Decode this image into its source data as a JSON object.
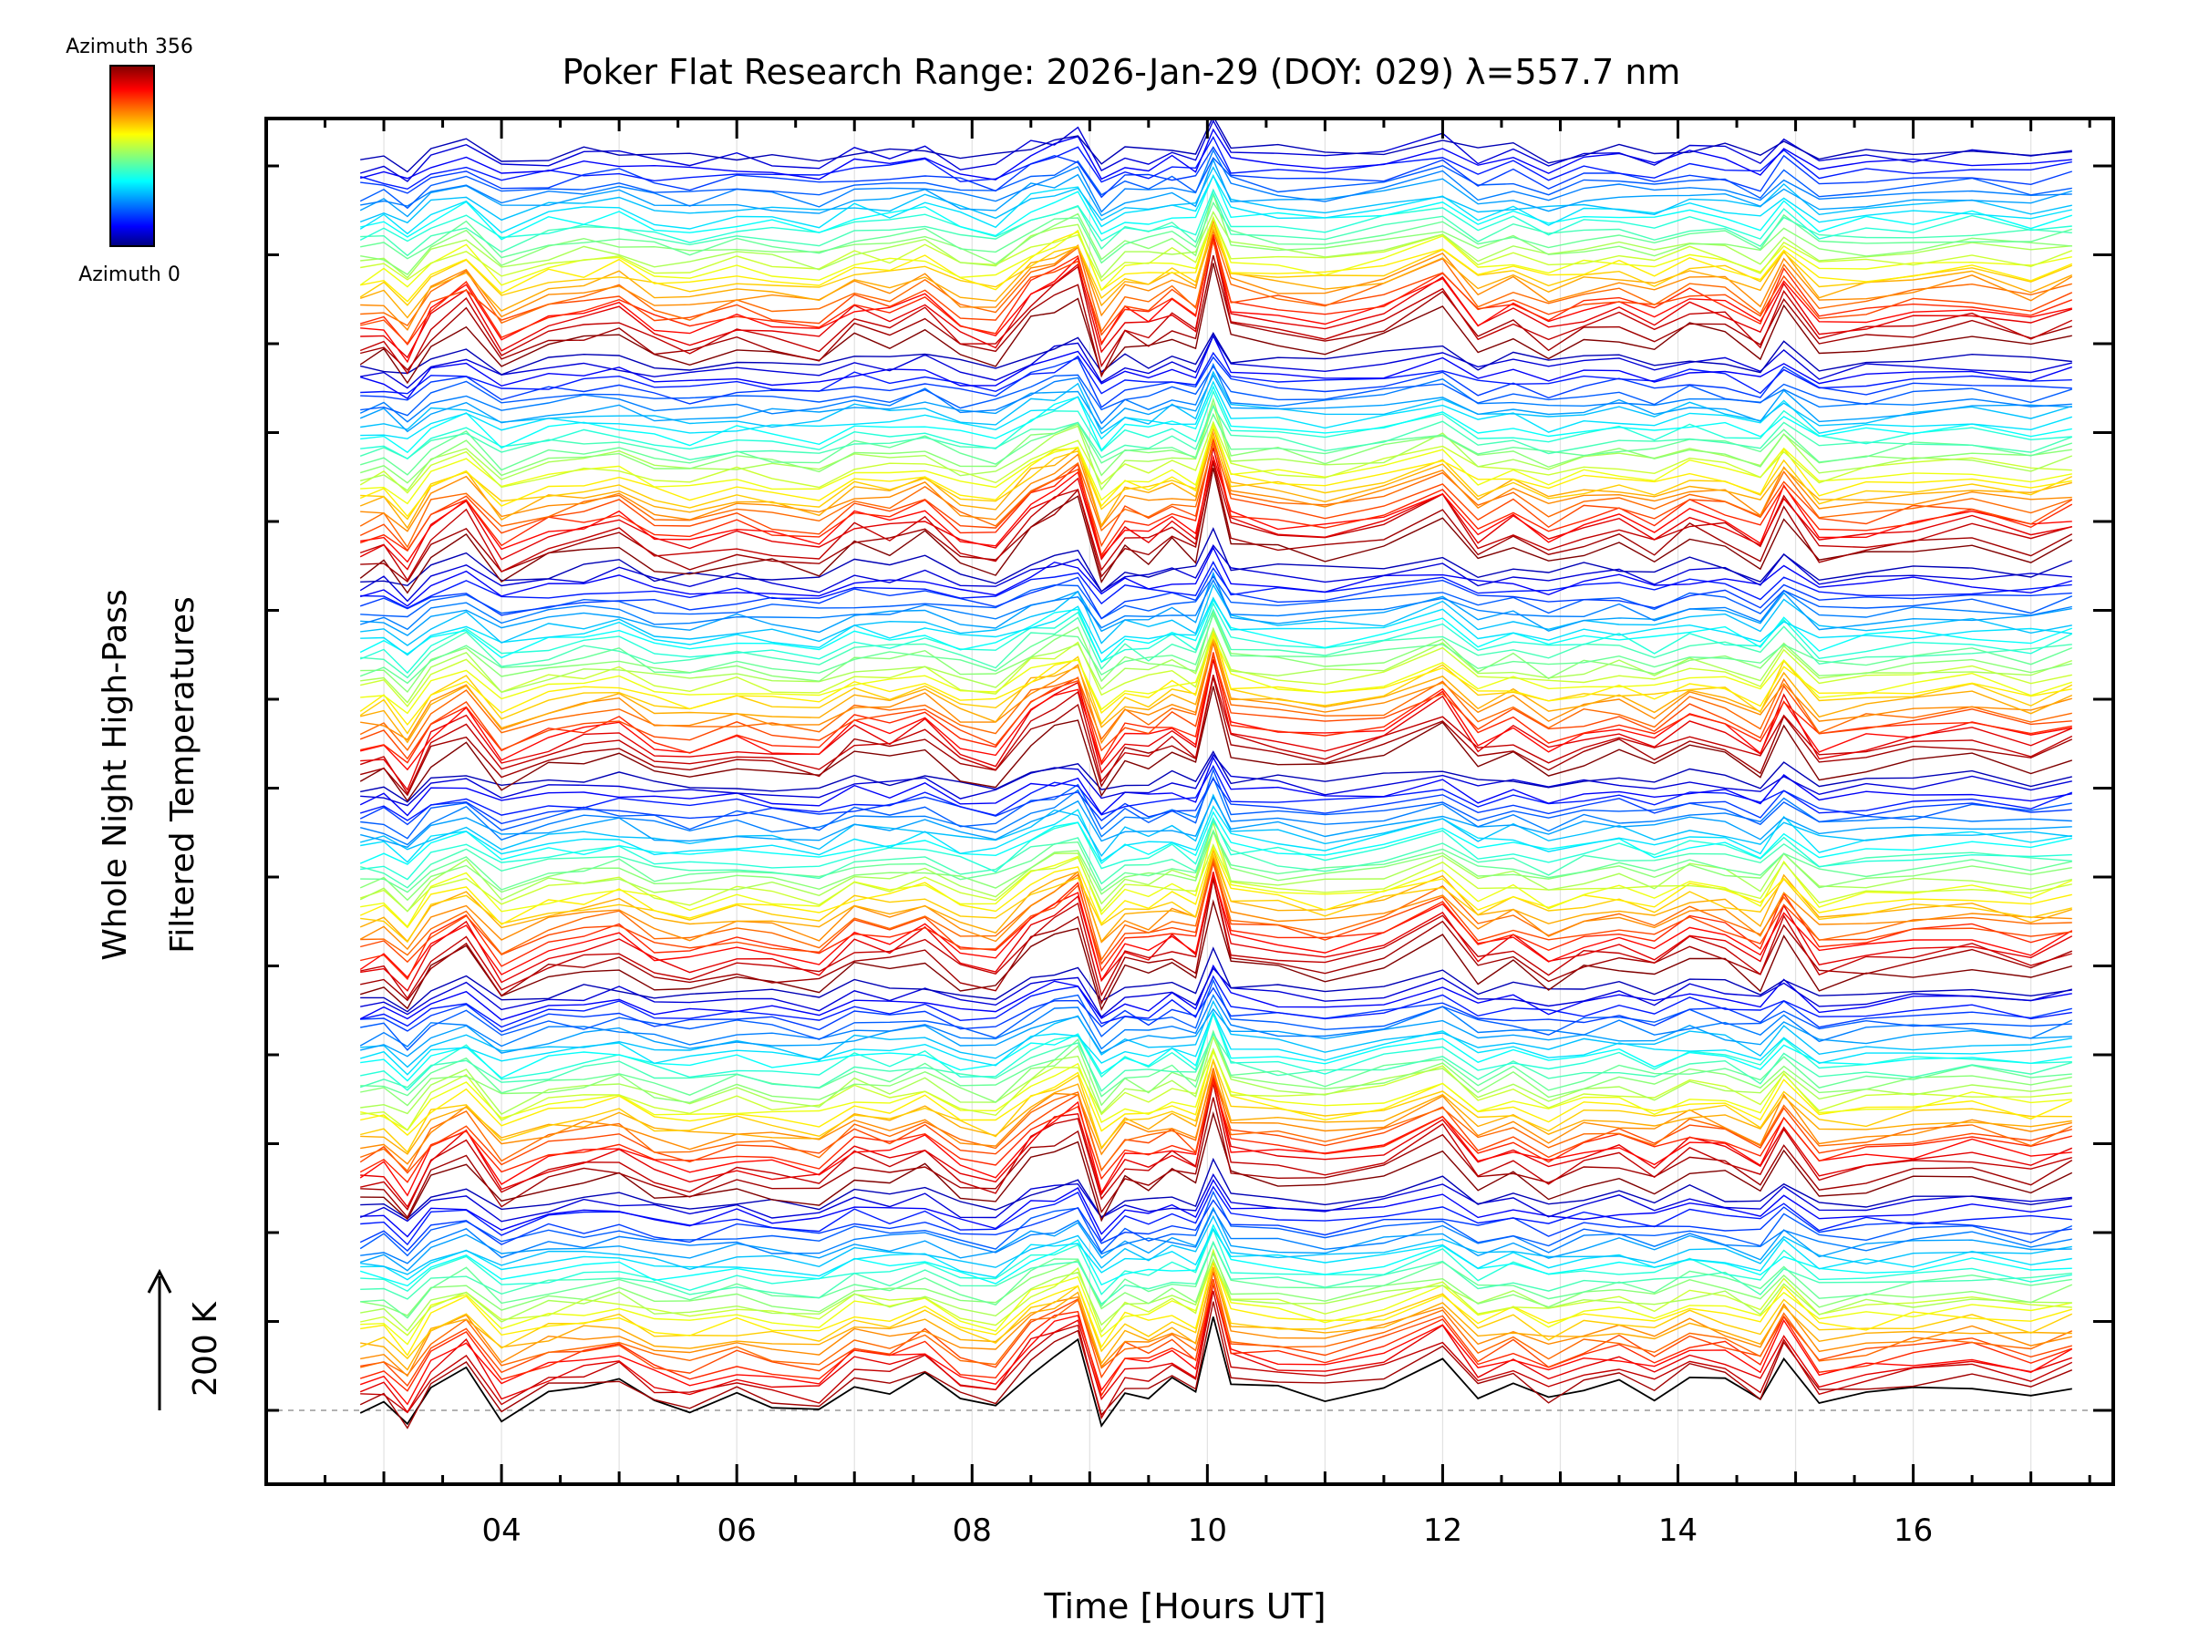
{
  "chart_data": {
    "type": "line",
    "title": "Poker Flat Research Range: 2026-Jan-29 (DOY: 029) λ=557.7 nm",
    "xlabel": "Time [Hours UT]",
    "ylabel_line1": "Whole Night High-Pass",
    "ylabel_line2": "Filtered Temperatures",
    "scale_label": "200 K",
    "colorbar": {
      "top_label": "Azimuth 356",
      "bottom_label": "Azimuth 0",
      "colormap": "jet",
      "azimuth_min": 0,
      "azimuth_max": 356
    },
    "xlim": [
      2.0,
      17.7
    ],
    "x_ticks": [
      4,
      6,
      8,
      10,
      12,
      14,
      16
    ],
    "x_tick_labels": [
      "04",
      "06",
      "08",
      "10",
      "12",
      "14",
      "16"
    ],
    "n_traces": 180,
    "trace_groups": 6,
    "trace_offset_note": "traces vertically offset, stacked by zenith ring then azimuth",
    "baseline_trace_color": "#000000",
    "time_samples": [
      2.8,
      3.0,
      3.2,
      3.4,
      3.7,
      4.0,
      4.4,
      4.7,
      5.0,
      5.3,
      5.6,
      6.0,
      6.3,
      6.7,
      7.0,
      7.3,
      7.6,
      7.9,
      8.2,
      8.5,
      8.7,
      8.9,
      9.1,
      9.3,
      9.5,
      9.7,
      9.9,
      10.05,
      10.2,
      10.6,
      11.0,
      11.5,
      12.0,
      12.3,
      12.6,
      12.9,
      13.2,
      13.5,
      13.8,
      14.1,
      14.4,
      14.7,
      14.9,
      15.2,
      15.6,
      16.0,
      16.5,
      17.0,
      17.35
    ],
    "series_shape_K": [
      0,
      10,
      -30,
      30,
      60,
      -10,
      20,
      30,
      40,
      10,
      0,
      20,
      10,
      0,
      40,
      30,
      50,
      10,
      0,
      60,
      80,
      100,
      -20,
      30,
      20,
      40,
      20,
      140,
      40,
      30,
      20,
      40,
      80,
      20,
      40,
      10,
      30,
      40,
      20,
      50,
      40,
      10,
      80,
      10,
      20,
      30,
      40,
      20,
      40
    ]
  }
}
